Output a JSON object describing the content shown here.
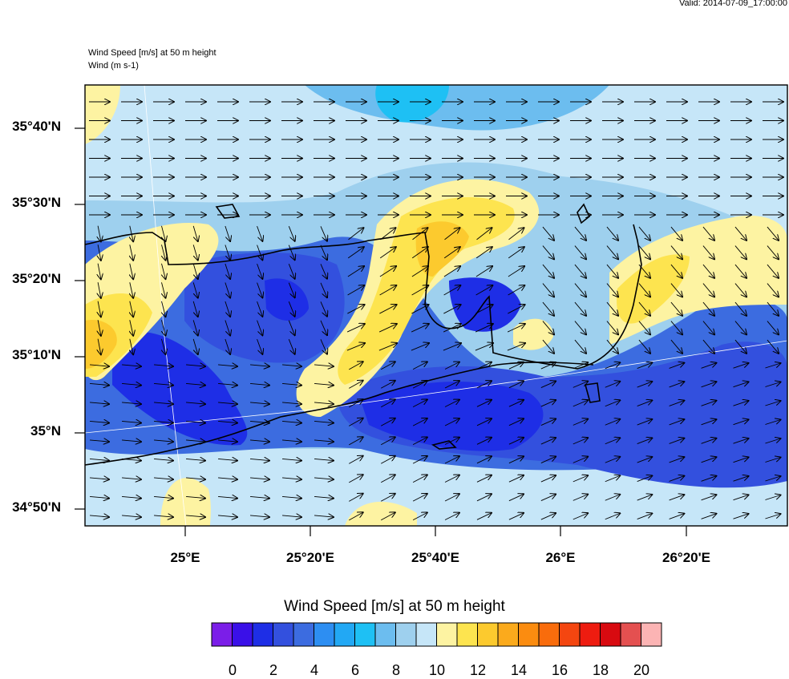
{
  "header": {
    "valid": "Valid: 2014-07-09_17:00:00",
    "title_primary": "Wind Speed [m/s] at 50 m height",
    "title_secondary": "Wind   (m s-1)"
  },
  "axes": {
    "lat_labels": [
      "35°40'N",
      "35°30'N",
      "35°20'N",
      "35°10'N",
      "35°N",
      "34°50'N"
    ],
    "lon_labels": [
      "25°E",
      "25°20'E",
      "25°40'E",
      "26°E",
      "26°20'E"
    ]
  },
  "colorbar": {
    "title": "Wind Speed [m/s] at 50 m height",
    "labels": [
      "0",
      "2",
      "4",
      "6",
      "8",
      "10",
      "12",
      "14",
      "16",
      "18",
      "20"
    ],
    "colors": [
      "#7b1ee8",
      "#3a10e8",
      "#1e2ee6",
      "#3350de",
      "#3c6ce0",
      "#2d8ef2",
      "#22a8f4",
      "#1ec0f4",
      "#6cbdef",
      "#9ed0ee",
      "#c6e6f8",
      "#fdf3a2",
      "#fde44f",
      "#fcca2e",
      "#fbaa1c",
      "#fb8c10",
      "#f96c0c",
      "#f44610",
      "#ee1c10",
      "#d80a10",
      "#e45050",
      "#fcb4b4"
    ]
  },
  "map": {
    "colors": {
      "very_light_blue": "#c6e6f8",
      "light_blue": "#9ed0ee",
      "sky_blue": "#6cbdef",
      "cyan": "#1ec0f4",
      "medium_blue": "#3c6ce0",
      "royal_blue": "#3350de",
      "deep_blue": "#1e2ee6",
      "pale_yellow": "#fdf3a2",
      "yellow": "#fde44f",
      "orange": "#fbaa1c"
    }
  }
}
